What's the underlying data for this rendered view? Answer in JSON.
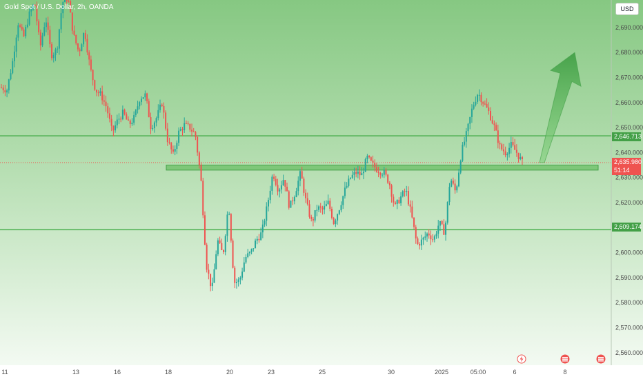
{
  "title": "Gold Spot / U.S. Dollar, 2h, OANDA",
  "currency": "USD",
  "colors": {
    "up": "#26a69a",
    "down": "#ef5350",
    "line": "#4caf50",
    "bg_top": "#86c882",
    "bg_bottom": "#f3faf2",
    "price_badge": "#ef5350",
    "level_badge": "#43a047"
  },
  "badges": {
    "level_high": "2,646.713",
    "price": "2,635.980",
    "countdown": "51:14",
    "level_low": "2,609.174"
  },
  "icons": [
    "lightning-icon",
    "event-icon",
    "event-icon"
  ],
  "chart_data": {
    "type": "candlestick",
    "title": "Gold Spot / U.S. Dollar, 2h, OANDA",
    "y_ticks": [
      "2,690.000",
      "2,680.000",
      "2,670.000",
      "2,660.000",
      "2,650.000",
      "2,640.000",
      "2,630.000",
      "2,620.000",
      "2,600.000",
      "2,590.000",
      "2,580.000",
      "2,570.000",
      "2,560.000"
    ],
    "x_ticks": [
      "11",
      "13",
      "16",
      "18",
      "20",
      "23",
      "25",
      "30",
      "2025",
      "05:00",
      "6",
      "8"
    ],
    "ylim": [
      2555,
      2701
    ],
    "horizontal_levels": [
      2646.713,
      2609.174
    ],
    "support_zone": [
      2633,
      2635
    ],
    "current_price": 2635.98,
    "projection": {
      "from": 2635.98,
      "to": 2680
    },
    "path": [
      2666,
      2665,
      2676,
      2692,
      2686,
      2695,
      2700,
      2682,
      2694,
      2679,
      2681,
      2700,
      2702,
      2687,
      2680,
      2689,
      2674,
      2665,
      2663,
      2658,
      2648,
      2653,
      2656,
      2651,
      2654,
      2662,
      2663,
      2650,
      2654,
      2660,
      2645,
      2639,
      2648,
      2651,
      2650,
      2647,
      2630,
      2595,
      2585,
      2605,
      2599,
      2620,
      2588,
      2589,
      2598,
      2600,
      2605,
      2608,
      2619,
      2632,
      2625,
      2630,
      2618,
      2624,
      2632,
      2620,
      2612,
      2618,
      2617,
      2620,
      2612,
      2618,
      2625,
      2630,
      2632,
      2631,
      2638,
      2635,
      2633,
      2632,
      2628,
      2618,
      2622,
      2625,
      2615,
      2603,
      2605,
      2608,
      2605,
      2612,
      2608,
      2630,
      2624,
      2640,
      2648,
      2658,
      2664,
      2660,
      2656,
      2650,
      2642,
      2640,
      2643,
      2640,
      2636
    ],
    "path_samples": 95
  }
}
